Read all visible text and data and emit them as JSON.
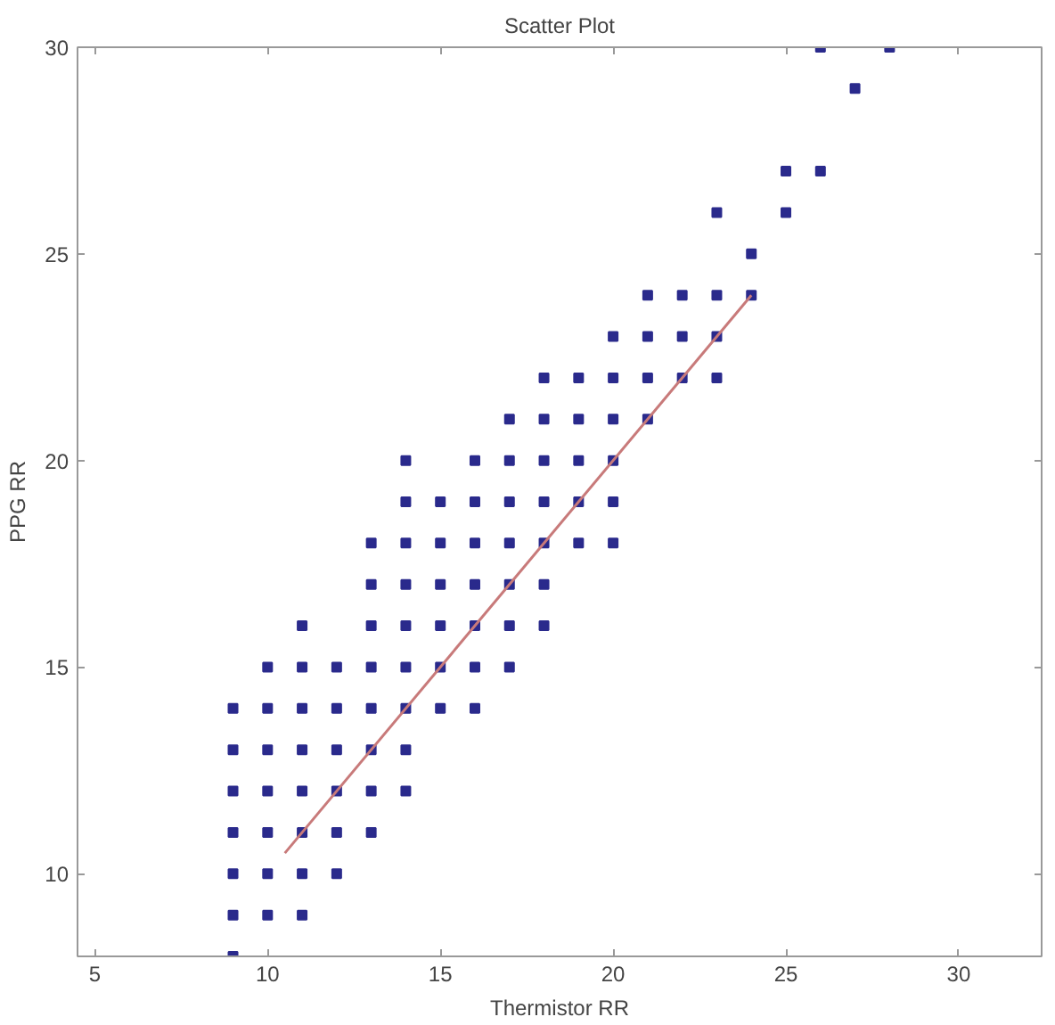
{
  "chart_data": {
    "type": "scatter",
    "title": "Scatter Plot",
    "xlabel": "Thermistor RR",
    "ylabel": "PPG RR",
    "xlim": [
      4.5,
      32.4
    ],
    "ylim": [
      8,
      30
    ],
    "xticks": [
      5,
      10,
      15,
      20,
      25,
      30
    ],
    "yticks": [
      10,
      15,
      20,
      25,
      30
    ],
    "grid": false,
    "marker": "square",
    "series": [
      {
        "color": "#2a2a8c",
        "x": [
          9,
          9,
          10,
          11,
          9,
          10,
          11,
          12,
          9,
          10,
          11,
          12,
          13,
          9,
          10,
          11,
          12,
          13,
          14,
          9,
          10,
          11,
          12,
          13,
          14,
          9,
          10,
          11,
          12,
          13,
          14,
          15,
          16,
          10,
          11,
          12,
          13,
          14,
          15,
          16,
          17,
          11,
          13,
          14,
          15,
          16,
          17,
          18,
          13,
          14,
          15,
          16,
          17,
          18,
          13,
          14,
          15,
          16,
          17,
          18,
          19,
          20,
          14,
          15,
          16,
          17,
          18,
          19,
          20,
          14,
          16,
          17,
          18,
          19,
          20,
          17,
          18,
          19,
          20,
          21,
          18,
          19,
          20,
          21,
          22,
          23,
          20,
          21,
          22,
          23,
          21,
          22,
          23,
          24,
          24,
          23,
          25,
          25,
          26,
          27,
          26,
          28
        ],
        "values": [
          8,
          9,
          9,
          9,
          10,
          10,
          10,
          10,
          11,
          11,
          11,
          11,
          11,
          12,
          12,
          12,
          12,
          12,
          12,
          13,
          13,
          13,
          13,
          13,
          13,
          14,
          14,
          14,
          14,
          14,
          14,
          14,
          14,
          15,
          15,
          15,
          15,
          15,
          15,
          15,
          15,
          16,
          16,
          16,
          16,
          16,
          16,
          16,
          17,
          17,
          17,
          17,
          17,
          17,
          18,
          18,
          18,
          18,
          18,
          18,
          18,
          18,
          19,
          19,
          19,
          19,
          19,
          19,
          19,
          20,
          20,
          20,
          20,
          20,
          20,
          21,
          21,
          21,
          21,
          21,
          22,
          22,
          22,
          22,
          22,
          22,
          23,
          23,
          23,
          23,
          24,
          24,
          24,
          24,
          25,
          26,
          26,
          27,
          27,
          29,
          30,
          30
        ]
      },
      {
        "type": "line",
        "color": "#c87a7a",
        "x": [
          10.5,
          24
        ],
        "values": [
          10.5,
          24
        ],
        "marker": "none",
        "line_style": "solid"
      }
    ]
  }
}
